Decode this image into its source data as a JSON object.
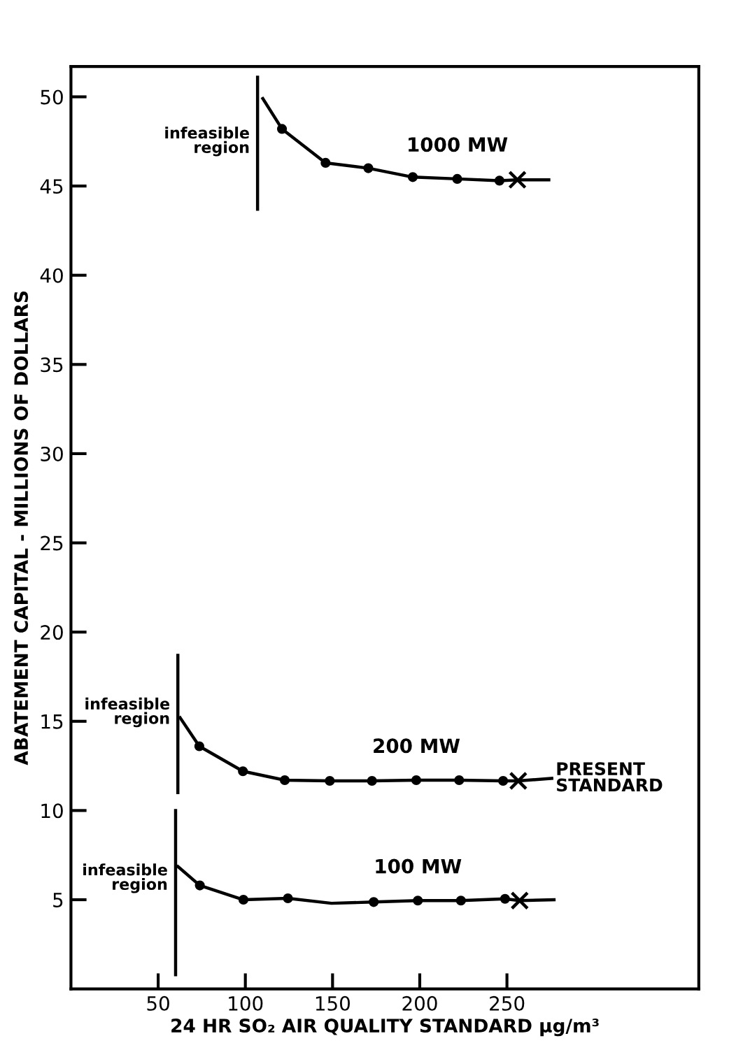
{
  "chart_data": {
    "type": "line",
    "xlabel": "24 HR SO₂ AIR QUALITY STANDARD µg/m³",
    "ylabel": "ABATEMENT CAPITAL - MILLIONS OF DOLLARS",
    "xlim": [
      0,
      360
    ],
    "ylim": [
      0,
      51.7
    ],
    "xticks": [
      50,
      100,
      150,
      200,
      250
    ],
    "yticks": [
      5,
      10,
      15,
      20,
      25,
      30,
      35,
      40,
      45,
      50
    ],
    "grid": false,
    "legend": false,
    "series": [
      {
        "name": "1000 MW",
        "color": "#000000",
        "marker": "none",
        "x": [
          110,
          121,
          146,
          170.5,
          196,
          221.5,
          245.7,
          256,
          274
        ],
        "values": [
          49.9,
          48.2,
          46.3,
          46.0,
          45.5,
          45.4,
          45.3,
          45.35,
          45.35
        ]
      },
      {
        "name": "200 MW",
        "color": "#000000",
        "marker": "none",
        "x": [
          62.6,
          73.6,
          98.6,
          122.6,
          148.4,
          172.6,
          198,
          222.6,
          247.8,
          256.5,
          275.7
        ],
        "values": [
          15.2,
          13.6,
          12.2,
          11.7,
          11.66,
          11.66,
          11.7,
          11.7,
          11.66,
          11.66,
          11.8
        ]
      },
      {
        "name": "100 MW",
        "color": "#000000",
        "marker": "none",
        "x": [
          61.3,
          73.9,
          98.9,
          124.4,
          149.4,
          173.6,
          198.9,
          223.6,
          248.9,
          257.3,
          277
        ],
        "values": [
          6.86,
          5.8,
          5.0,
          5.08,
          4.8,
          4.87,
          4.95,
          4.95,
          5.05,
          4.95,
          5.0
        ]
      },
      {
        "type": "scatter",
        "color": "#000000",
        "marker": "circle",
        "x": [
          121,
          146,
          170.5,
          196,
          221.5,
          245.7,
          73.6,
          98.6,
          122.6,
          148.4,
          172.6,
          198,
          222.6,
          247.8,
          73.9,
          98.9,
          124.4,
          173.6,
          198.9,
          223.6,
          248.9
        ],
        "values": [
          48.2,
          46.3,
          46.0,
          45.5,
          45.4,
          45.3,
          13.6,
          12.2,
          11.7,
          11.66,
          11.66,
          11.7,
          11.7,
          11.66,
          5.8,
          5.0,
          5.08,
          4.87,
          4.95,
          4.95,
          5.05
        ]
      },
      {
        "type": "scatter",
        "color": "#000000",
        "marker": "cross",
        "x": [
          256,
          256.5,
          257.3
        ],
        "values": [
          45.35,
          11.66,
          4.95
        ]
      },
      {
        "color": "#000000",
        "marker": "none",
        "x": [
          107,
          107
        ],
        "values": [
          43.7,
          51.1
        ]
      },
      {
        "color": "#000000",
        "marker": "none",
        "x": [
          61.3,
          61.3
        ],
        "values": [
          11.0,
          18.7
        ]
      },
      {
        "color": "#000000",
        "marker": "none",
        "x": [
          60,
          60
        ],
        "values": [
          0.8,
          10
        ]
      }
    ],
    "annotations": [
      {
        "text": "infeasible\nregion",
        "x": 107,
        "y": 47.5
      },
      {
        "text": "infeasible\nregion",
        "x": 61.3,
        "y": 15.5
      },
      {
        "text": "infeasible\nregion",
        "x": 60,
        "y": 6.2
      },
      {
        "text": "PRESENT\nSTANDARD",
        "x": 275.7,
        "y": 11.8
      }
    ]
  }
}
